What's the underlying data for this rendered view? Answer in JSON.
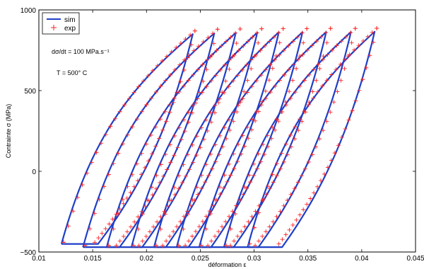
{
  "chart_data": {
    "type": "line",
    "title": "",
    "xlabel": "déformation ε",
    "ylabel": "Contrainte σ (MPa)",
    "xlim": [
      0.01,
      0.045
    ],
    "ylim": [
      -500,
      1000
    ],
    "xticks": [
      0.01,
      0.015,
      0.02,
      0.025,
      0.03,
      0.035,
      0.04,
      0.045
    ],
    "xtick_labels": [
      "0.01",
      "0.015",
      "0.02",
      "0.025",
      "0.03",
      "0.035",
      "0.04",
      "0.045"
    ],
    "yticks": [
      -500,
      0,
      500,
      1000
    ],
    "ytick_labels": [
      "−500",
      "0",
      "500",
      "1000"
    ],
    "legend": {
      "position": "top-left",
      "entries": [
        "sim",
        "exp"
      ]
    },
    "annotations": [
      "dσ/dt = 100 MPa.s⁻¹",
      "T = 500° C"
    ],
    "colors": {
      "sim": "#1f3fc8",
      "exp": "#ff2222"
    },
    "series": [
      {
        "name": "sim",
        "style": "line",
        "loops": [
          {
            "x_min": 0.0121,
            "x_max": 0.0243,
            "x_bottom_right": 0.0155,
            "x_top_left": 0.0206,
            "y_min": -450,
            "y_max": 850
          },
          {
            "x_min": 0.0141,
            "x_max": 0.0263,
            "x_bottom_right": 0.0175,
            "x_top_left": 0.0226,
            "y_min": -470,
            "y_max": 855
          },
          {
            "x_min": 0.0163,
            "x_max": 0.0283,
            "x_bottom_right": 0.0196,
            "x_top_left": 0.0247,
            "y_min": -470,
            "y_max": 858
          },
          {
            "x_min": 0.0186,
            "x_max": 0.0303,
            "x_bottom_right": 0.0218,
            "x_top_left": 0.0268,
            "y_min": -470,
            "y_max": 860
          },
          {
            "x_min": 0.0207,
            "x_max": 0.0323,
            "x_bottom_right": 0.0239,
            "x_top_left": 0.0289,
            "y_min": -470,
            "y_max": 862
          },
          {
            "x_min": 0.0228,
            "x_max": 0.0345,
            "x_bottom_right": 0.026,
            "x_top_left": 0.031,
            "y_min": -470,
            "y_max": 862
          },
          {
            "x_min": 0.0249,
            "x_max": 0.0367,
            "x_bottom_right": 0.0281,
            "x_top_left": 0.0331,
            "y_min": -470,
            "y_max": 863
          },
          {
            "x_min": 0.0272,
            "x_max": 0.039,
            "x_bottom_right": 0.0304,
            "x_top_left": 0.0354,
            "y_min": -470,
            "y_max": 863
          },
          {
            "x_min": 0.0294,
            "x_max": 0.0412,
            "x_bottom_right": 0.0326,
            "x_top_left": 0.0376,
            "y_min": -470,
            "y_max": 865
          }
        ]
      },
      {
        "name": "exp",
        "style": "markers",
        "marker": "+",
        "loops": [
          {
            "x_min": 0.0123,
            "x_max": 0.0245,
            "x_bottom_right": 0.0152,
            "x_top_left": 0.021,
            "y_min": -440,
            "y_max": 870
          },
          {
            "x_min": 0.0143,
            "x_max": 0.0266,
            "x_bottom_right": 0.0172,
            "x_top_left": 0.023,
            "y_min": -460,
            "y_max": 880
          },
          {
            "x_min": 0.0165,
            "x_max": 0.0287,
            "x_bottom_right": 0.0193,
            "x_top_left": 0.0251,
            "y_min": -460,
            "y_max": 882
          },
          {
            "x_min": 0.0188,
            "x_max": 0.0307,
            "x_bottom_right": 0.0215,
            "x_top_left": 0.0272,
            "y_min": -460,
            "y_max": 883
          },
          {
            "x_min": 0.0209,
            "x_max": 0.0327,
            "x_bottom_right": 0.0236,
            "x_top_left": 0.0293,
            "y_min": -460,
            "y_max": 884
          },
          {
            "x_min": 0.023,
            "x_max": 0.0349,
            "x_bottom_right": 0.0257,
            "x_top_left": 0.0314,
            "y_min": -460,
            "y_max": 884
          },
          {
            "x_min": 0.0251,
            "x_max": 0.0371,
            "x_bottom_right": 0.0278,
            "x_top_left": 0.0335,
            "y_min": -460,
            "y_max": 885
          },
          {
            "x_min": 0.0274,
            "x_max": 0.0394,
            "x_bottom_right": 0.0301,
            "x_top_left": 0.0358,
            "y_min": -460,
            "y_max": 885
          },
          {
            "x_min": 0.0296,
            "x_max": 0.0414,
            "x_bottom_right": 0.0323,
            "x_top_left": 0.038,
            "y_min": -450,
            "y_max": 886
          }
        ]
      }
    ]
  }
}
